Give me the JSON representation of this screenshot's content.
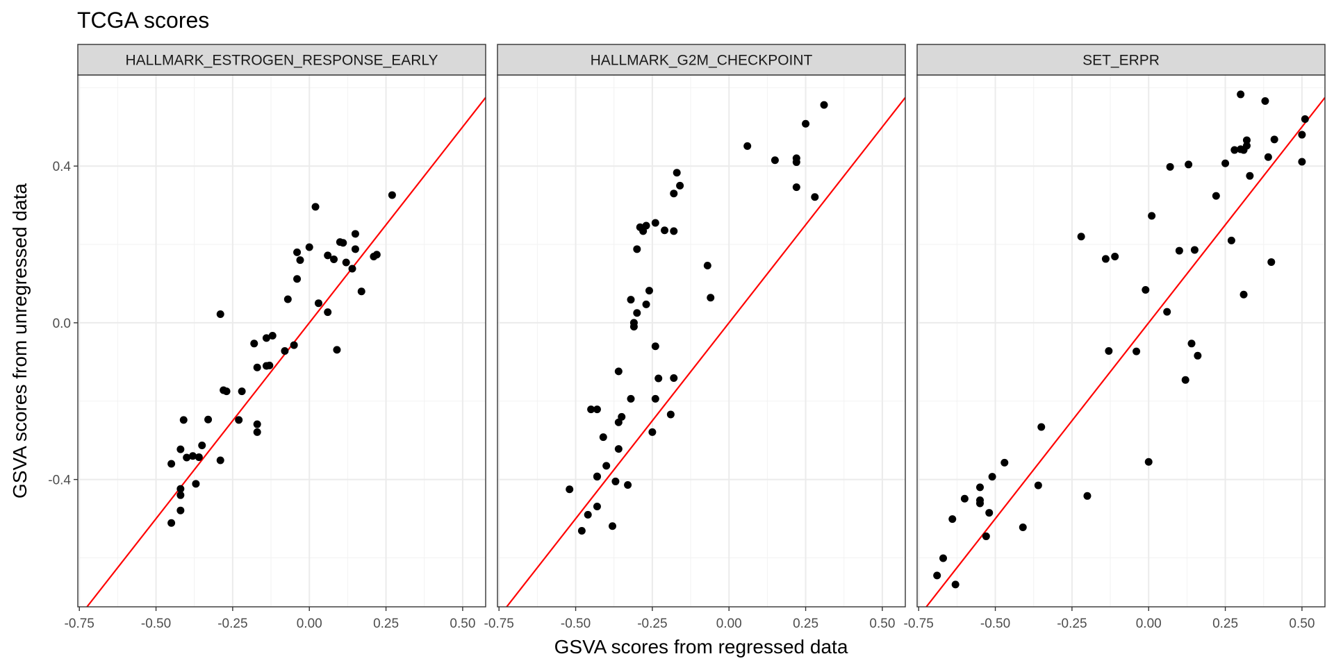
{
  "chart_data": {
    "type": "scatter",
    "title": "TCGA scores",
    "xlabel": "GSVA scores from regressed data",
    "ylabel": "GSVA scores from unregressed data",
    "xlim": [
      -0.755,
      0.575
    ],
    "ylim": [
      -0.725,
      0.6325
    ],
    "x_ticks": [
      -0.75,
      -0.5,
      -0.25,
      0.0,
      0.25,
      0.5
    ],
    "x_tick_labels": [
      "-0.75",
      "-0.50",
      "-0.25",
      "0.00",
      "0.25",
      "0.50"
    ],
    "y_ticks": [
      -0.4,
      0.0,
      0.4
    ],
    "y_tick_labels": [
      "-0.4",
      "0.0",
      "0.4"
    ],
    "grid": true,
    "reference_line": {
      "slope": 1,
      "intercept": 0,
      "color": "#ff0000"
    },
    "point_color": "#000000",
    "panels": [
      {
        "name": "HALLMARK_ESTROGEN_RESPONSE_EARLY",
        "points": [
          [
            0.27,
            0.326
          ],
          [
            0.02,
            0.296
          ],
          [
            0.15,
            0.227
          ],
          [
            0.1,
            0.206
          ],
          [
            0.11,
            0.204
          ],
          [
            0.0,
            0.193
          ],
          [
            0.15,
            0.188
          ],
          [
            -0.04,
            0.18
          ],
          [
            0.22,
            0.174
          ],
          [
            0.06,
            0.172
          ],
          [
            0.21,
            0.169
          ],
          [
            0.08,
            0.162
          ],
          [
            -0.03,
            0.16
          ],
          [
            0.12,
            0.154
          ],
          [
            0.14,
            0.138
          ],
          [
            -0.04,
            0.112
          ],
          [
            0.17,
            0.08
          ],
          [
            -0.07,
            0.06
          ],
          [
            0.03,
            0.05
          ],
          [
            0.06,
            0.027
          ],
          [
            -0.29,
            0.022
          ],
          [
            -0.12,
            -0.033
          ],
          [
            -0.14,
            -0.039
          ],
          [
            -0.18,
            -0.053
          ],
          [
            -0.05,
            -0.057
          ],
          [
            0.09,
            -0.069
          ],
          [
            -0.08,
            -0.072
          ],
          [
            -0.13,
            -0.109
          ],
          [
            -0.14,
            -0.11
          ],
          [
            -0.17,
            -0.114
          ],
          [
            -0.28,
            -0.172
          ],
          [
            -0.27,
            -0.175
          ],
          [
            -0.22,
            -0.175
          ],
          [
            -0.23,
            -0.248
          ],
          [
            -0.33,
            -0.247
          ],
          [
            -0.41,
            -0.248
          ],
          [
            -0.17,
            -0.259
          ],
          [
            -0.17,
            -0.279
          ],
          [
            -0.35,
            -0.313
          ],
          [
            -0.42,
            -0.323
          ],
          [
            -0.38,
            -0.34
          ],
          [
            -0.36,
            -0.343
          ],
          [
            -0.4,
            -0.344
          ],
          [
            -0.29,
            -0.351
          ],
          [
            -0.45,
            -0.36
          ],
          [
            -0.37,
            -0.411
          ],
          [
            -0.42,
            -0.424
          ],
          [
            -0.42,
            -0.44
          ],
          [
            -0.42,
            -0.479
          ],
          [
            -0.45,
            -0.511
          ]
        ]
      },
      {
        "name": "HALLMARK_G2M_CHECKPOINT",
        "points": [
          [
            0.31,
            0.556
          ],
          [
            0.25,
            0.508
          ],
          [
            0.06,
            0.451
          ],
          [
            0.22,
            0.42
          ],
          [
            0.15,
            0.415
          ],
          [
            0.22,
            0.41
          ],
          [
            -0.17,
            0.383
          ],
          [
            -0.16,
            0.35
          ],
          [
            0.22,
            0.346
          ],
          [
            -0.18,
            0.33
          ],
          [
            0.28,
            0.321
          ],
          [
            -0.24,
            0.255
          ],
          [
            -0.27,
            0.248
          ],
          [
            -0.29,
            0.244
          ],
          [
            -0.21,
            0.236
          ],
          [
            -0.28,
            0.234
          ],
          [
            -0.18,
            0.234
          ],
          [
            -0.3,
            0.188
          ],
          [
            -0.07,
            0.146
          ],
          [
            -0.26,
            0.082
          ],
          [
            -0.06,
            0.064
          ],
          [
            -0.32,
            0.059
          ],
          [
            -0.27,
            0.047
          ],
          [
            -0.3,
            0.025
          ],
          [
            -0.31,
            0.0
          ],
          [
            -0.31,
            -0.01
          ],
          [
            -0.24,
            -0.06
          ],
          [
            -0.36,
            -0.124
          ],
          [
            -0.23,
            -0.142
          ],
          [
            -0.18,
            -0.141
          ],
          [
            -0.32,
            -0.194
          ],
          [
            -0.24,
            -0.194
          ],
          [
            -0.45,
            -0.221
          ],
          [
            -0.43,
            -0.221
          ],
          [
            -0.19,
            -0.234
          ],
          [
            -0.35,
            -0.24
          ],
          [
            -0.36,
            -0.254
          ],
          [
            -0.25,
            -0.279
          ],
          [
            -0.41,
            -0.292
          ],
          [
            -0.36,
            -0.322
          ],
          [
            -0.4,
            -0.365
          ],
          [
            -0.43,
            -0.392
          ],
          [
            -0.43,
            -0.393
          ],
          [
            -0.37,
            -0.405
          ],
          [
            -0.33,
            -0.414
          ],
          [
            -0.52,
            -0.425
          ],
          [
            -0.43,
            -0.469
          ],
          [
            -0.46,
            -0.49
          ],
          [
            -0.38,
            -0.519
          ],
          [
            -0.48,
            -0.531
          ]
        ]
      },
      {
        "name": "SET_ERPR",
        "points": [
          [
            0.3,
            0.583
          ],
          [
            0.38,
            0.566
          ],
          [
            0.51,
            0.52
          ],
          [
            0.5,
            0.48
          ],
          [
            0.41,
            0.468
          ],
          [
            0.32,
            0.466
          ],
          [
            0.32,
            0.452
          ],
          [
            0.3,
            0.443
          ],
          [
            0.28,
            0.441
          ],
          [
            0.31,
            0.441
          ],
          [
            0.39,
            0.423
          ],
          [
            0.5,
            0.411
          ],
          [
            0.25,
            0.407
          ],
          [
            0.13,
            0.404
          ],
          [
            0.07,
            0.398
          ],
          [
            0.33,
            0.375
          ],
          [
            0.22,
            0.324
          ],
          [
            0.01,
            0.273
          ],
          [
            -0.22,
            0.22
          ],
          [
            0.27,
            0.21
          ],
          [
            0.1,
            0.184
          ],
          [
            0.15,
            0.186
          ],
          [
            -0.11,
            0.169
          ],
          [
            -0.14,
            0.163
          ],
          [
            0.4,
            0.155
          ],
          [
            -0.01,
            0.084
          ],
          [
            0.31,
            0.072
          ],
          [
            0.06,
            0.028
          ],
          [
            0.14,
            -0.053
          ],
          [
            -0.13,
            -0.072
          ],
          [
            -0.04,
            -0.073
          ],
          [
            0.16,
            -0.084
          ],
          [
            0.12,
            -0.146
          ],
          [
            -0.35,
            -0.266
          ],
          [
            0.0,
            -0.355
          ],
          [
            -0.47,
            -0.357
          ],
          [
            -0.51,
            -0.393
          ],
          [
            -0.55,
            -0.42
          ],
          [
            -0.36,
            -0.415
          ],
          [
            -0.2,
            -0.442
          ],
          [
            -0.6,
            -0.449
          ],
          [
            -0.55,
            -0.453
          ],
          [
            -0.55,
            -0.461
          ],
          [
            -0.52,
            -0.485
          ],
          [
            -0.64,
            -0.501
          ],
          [
            -0.41,
            -0.522
          ],
          [
            -0.53,
            -0.545
          ],
          [
            -0.67,
            -0.601
          ],
          [
            -0.69,
            -0.645
          ],
          [
            -0.63,
            -0.668
          ]
        ]
      }
    ]
  }
}
